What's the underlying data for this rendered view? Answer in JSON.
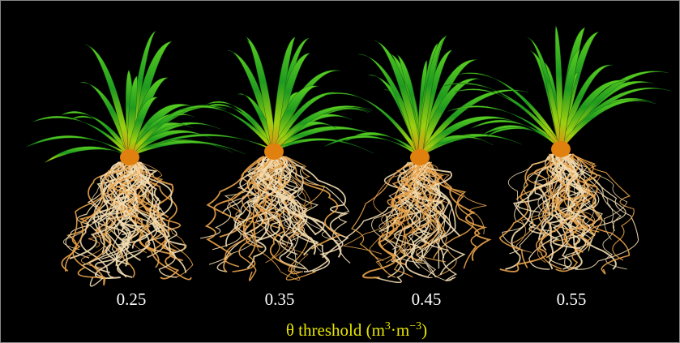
{
  "labels": [
    "0.25",
    "0.35",
    "0.45",
    "0.55"
  ],
  "caption": {
    "text": "θ threshold (m",
    "sup1": "3",
    "mid": "·m",
    "sup2": "−3",
    "end": ")"
  }
}
